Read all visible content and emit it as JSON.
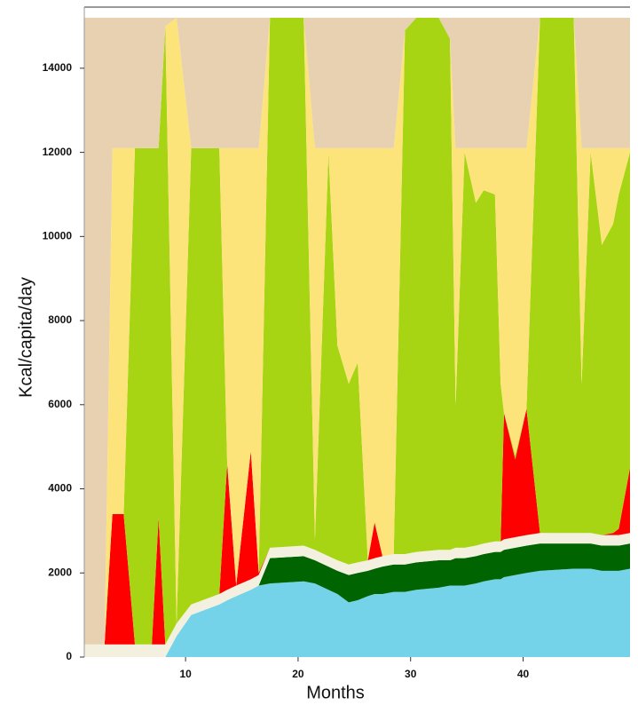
{
  "chart_data": {
    "type": "stacked-area",
    "xlabel": "Months",
    "ylabel": "Kcal/capita/day",
    "xlim": [
      1,
      49.5
    ],
    "ylim": [
      0,
      15200
    ],
    "xticks": [
      10,
      20,
      30,
      40
    ],
    "yticks": [
      0,
      2000,
      4000,
      6000,
      8000,
      10000,
      12000,
      14000
    ],
    "x": [
      1,
      2.8,
      3.5,
      4.5,
      5.5,
      7,
      7.6,
      8.2,
      9.2,
      10.5,
      13,
      13.7,
      14.5,
      15.8,
      16.5,
      17.5,
      20.5,
      21.5,
      22.7,
      23.5,
      24.5,
      25.3,
      26.2,
      26.8,
      27.5,
      28.5,
      29.5,
      30.5,
      32.5,
      33.5,
      34,
      34.8,
      35.8,
      36.5,
      37.5,
      38,
      38.3,
      39.3,
      40.3,
      41.5,
      44.5,
      45.2,
      46,
      47,
      48,
      48.5,
      49.5
    ],
    "series": [
      {
        "color": "#74d3e8",
        "values": [
          0,
          0,
          0,
          0,
          0,
          0,
          0,
          0,
          500,
          1000,
          1250,
          1350,
          1450,
          1600,
          1700,
          1750,
          1800,
          1750,
          1600,
          1500,
          1300,
          1350,
          1450,
          1500,
          1500,
          1550,
          1550,
          1600,
          1650,
          1700,
          1700,
          1700,
          1750,
          1800,
          1850,
          1850,
          1900,
          1950,
          2000,
          2050,
          2100,
          2100,
          2100,
          2050,
          2050,
          2050,
          2100
        ]
      },
      {
        "color": "#006400",
        "values": [
          0,
          0,
          0,
          0,
          0,
          0,
          0,
          0,
          0,
          0,
          0,
          0,
          0,
          0,
          0,
          600,
          600,
          550,
          550,
          550,
          650,
          650,
          600,
          600,
          650,
          650,
          650,
          650,
          650,
          600,
          650,
          650,
          650,
          650,
          650,
          650,
          650,
          650,
          650,
          650,
          600,
          600,
          600,
          600,
          600,
          600,
          600
        ]
      },
      {
        "color": "#f3f0e0",
        "values": [
          300,
          300,
          300,
          300,
          300,
          300,
          300,
          300,
          300,
          250,
          250,
          250,
          250,
          250,
          250,
          250,
          250,
          250,
          250,
          250,
          250,
          250,
          250,
          250,
          250,
          250,
          250,
          250,
          250,
          250,
          250,
          250,
          250,
          250,
          250,
          250,
          250,
          250,
          250,
          250,
          250,
          250,
          250,
          250,
          250,
          250,
          250
        ]
      },
      {
        "color": "#ff0000",
        "values": [
          0,
          0,
          3100,
          3100,
          0,
          0,
          3000,
          0,
          0,
          0,
          0,
          3000,
          0,
          3050,
          50,
          0,
          0,
          0,
          0,
          0,
          0,
          0,
          0,
          850,
          0,
          0,
          0,
          0,
          0,
          0,
          0,
          0,
          0,
          0,
          0,
          0,
          3000,
          1850,
          3000,
          0,
          0,
          0,
          0,
          0,
          50,
          150,
          1550
        ]
      },
      {
        "color": "#a8d513",
        "values": [
          0,
          0,
          0,
          0,
          11800,
          11800,
          8800,
          14700,
          0,
          10850,
          10600,
          0,
          0,
          0,
          0,
          12600,
          12550,
          250,
          9600,
          5100,
          4300,
          4750,
          0,
          0,
          0,
          0,
          12450,
          12700,
          12650,
          12150,
          3400,
          9400,
          8150,
          8400,
          8250,
          3750,
          0,
          100,
          0,
          12250,
          12250,
          3550,
          9050,
          6900,
          7350,
          7950,
          7500
        ]
      },
      {
        "color": "#fde47a",
        "values": [
          0,
          0,
          8700,
          8700,
          0,
          0,
          0,
          0,
          14400,
          0,
          0,
          7500,
          10400,
          7200,
          10100,
          0,
          0,
          9300,
          100,
          4700,
          5600,
          5100,
          9800,
          8900,
          9700,
          9650,
          0,
          0,
          0,
          0,
          6100,
          100,
          1300,
          1000,
          1100,
          5600,
          6300,
          7300,
          6200,
          0,
          0,
          5600,
          100,
          2300,
          1800,
          1100,
          100
        ]
      },
      {
        "color": "#e8d1b0",
        "values": [
          14900,
          14900,
          3100,
          3100,
          3100,
          3100,
          3100,
          200,
          0,
          3100,
          3100,
          3100,
          3100,
          3100,
          3100,
          0,
          0,
          3100,
          3100,
          3100,
          3100,
          3100,
          3100,
          3100,
          3100,
          3100,
          300,
          0,
          0,
          500,
          3100,
          3100,
          3100,
          3100,
          3100,
          3100,
          3100,
          3100,
          3100,
          0,
          0,
          3100,
          3100,
          3100,
          3100,
          3100,
          3100
        ]
      }
    ]
  }
}
